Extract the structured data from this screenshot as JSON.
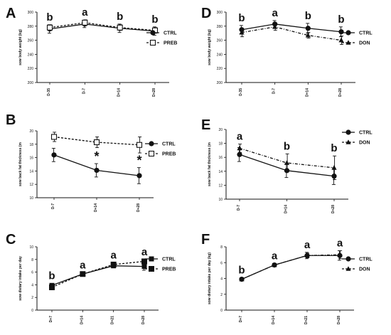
{
  "chart_data": [
    {
      "panel": "A",
      "type": "line",
      "ylabel": "sow body weight (kg)",
      "categories": [
        "D-35",
        "D-7",
        "D+14",
        "D+28"
      ],
      "ylim": [
        200,
        300
      ],
      "yticks": [
        "200",
        "220",
        "240",
        "260",
        "280",
        "300"
      ],
      "series": [
        {
          "name": "CTRL",
          "style": "ctrl",
          "values": [
            276,
            283,
            277,
            273
          ],
          "err": [
            6,
            5,
            6,
            6
          ]
        },
        {
          "name": "PREB",
          "style": "preb",
          "values": [
            278,
            285,
            278,
            274
          ],
          "err": [
            4,
            4,
            4,
            4
          ]
        }
      ],
      "point_labels": [
        "b",
        "a",
        "b",
        "b"
      ],
      "significance": []
    },
    {
      "panel": "B",
      "type": "line",
      "ylabel": "sow back fat thickness (m",
      "categories": [
        "D-7",
        "D+14",
        "D+28"
      ],
      "ylim": [
        10,
        20
      ],
      "yticks": [
        "10",
        "12",
        "14",
        "16",
        "18",
        "20"
      ],
      "series": [
        {
          "name": "CTRL",
          "style": "ctrl",
          "values": [
            16.4,
            14.1,
            13.3
          ],
          "err": [
            1.0,
            1.0,
            1.2
          ]
        },
        {
          "name": "PREB",
          "style": "preb",
          "values": [
            19.1,
            18.3,
            17.9
          ],
          "err": [
            0.7,
            0.8,
            1.2
          ]
        }
      ],
      "point_labels": [],
      "significance": [
        "",
        "*",
        "*"
      ]
    },
    {
      "panel": "C",
      "type": "line",
      "ylabel": "sow dietary intake per day",
      "categories": [
        "D+7",
        "D+14",
        "D+21",
        "D+28"
      ],
      "ylim": [
        0,
        10
      ],
      "yticks": [
        "0",
        "2",
        "4",
        "6",
        "8",
        "10"
      ],
      "series": [
        {
          "name": "CTRL",
          "style": "ctrl-sq",
          "values": [
            3.9,
            5.7,
            7.0,
            6.9
          ],
          "err": [
            0.3,
            0.2,
            0.3,
            0.6
          ]
        },
        {
          "name": "PREB",
          "style": "preb-sq",
          "values": [
            3.6,
            5.7,
            7.2,
            7.7
          ],
          "err": [
            0.4,
            0.2,
            0.3,
            0.3
          ]
        }
      ],
      "point_labels": [
        "b",
        "a",
        "a",
        "a"
      ],
      "significance": []
    },
    {
      "panel": "D",
      "type": "line",
      "ylabel": "sow body weight (kg)",
      "categories": [
        "D-35",
        "D-7",
        "D+14",
        "D+28"
      ],
      "ylim": [
        200,
        300
      ],
      "yticks": [
        "200",
        "220",
        "240",
        "260",
        "280",
        "300"
      ],
      "series": [
        {
          "name": "CTRL",
          "style": "ctrl",
          "values": [
            275,
            283,
            277,
            272
          ],
          "err": [
            6,
            5,
            7,
            7
          ]
        },
        {
          "name": "DON",
          "style": "don",
          "values": [
            271,
            279,
            267,
            260
          ],
          "err": [
            6,
            5,
            4,
            6
          ]
        }
      ],
      "point_labels": [
        "b",
        "a",
        "b",
        "b"
      ],
      "significance": []
    },
    {
      "panel": "E",
      "type": "line",
      "ylabel": "sow back fat thickness (m",
      "categories": [
        "D-7",
        "D+14",
        "D+28"
      ],
      "ylim": [
        10,
        20
      ],
      "yticks": [
        "10",
        "12",
        "14",
        "16",
        "18",
        "20"
      ],
      "series": [
        {
          "name": "CTRL",
          "style": "ctrl",
          "values": [
            16.4,
            14.1,
            13.3
          ],
          "err": [
            1.0,
            1.0,
            1.2
          ]
        },
        {
          "name": "DON",
          "style": "don",
          "values": [
            17.3,
            15.2,
            14.5
          ],
          "err": [
            0.6,
            1.3,
            1.7
          ]
        }
      ],
      "point_labels": [
        "a",
        "b",
        "b"
      ],
      "significance": []
    },
    {
      "panel": "F",
      "type": "line",
      "ylabel": "sow dietary intake per day (kg)",
      "categories": [
        "D+7",
        "D+14",
        "D+21",
        "D+28"
      ],
      "ylim": [
        0,
        8
      ],
      "yticks": [
        "0",
        "2",
        "4",
        "6",
        "8"
      ],
      "series": [
        {
          "name": "CTRL",
          "style": "ctrl",
          "values": [
            3.9,
            5.7,
            6.9,
            6.9
          ],
          "err": [
            0.2,
            0.2,
            0.4,
            0.6
          ]
        },
        {
          "name": "DON",
          "style": "don",
          "values": [
            3.9,
            5.7,
            6.9,
            7.0
          ],
          "err": [
            0.2,
            0.2,
            0.3,
            0.5
          ]
        }
      ],
      "point_labels": [
        "b",
        "a",
        "a",
        "a"
      ],
      "significance": []
    }
  ]
}
